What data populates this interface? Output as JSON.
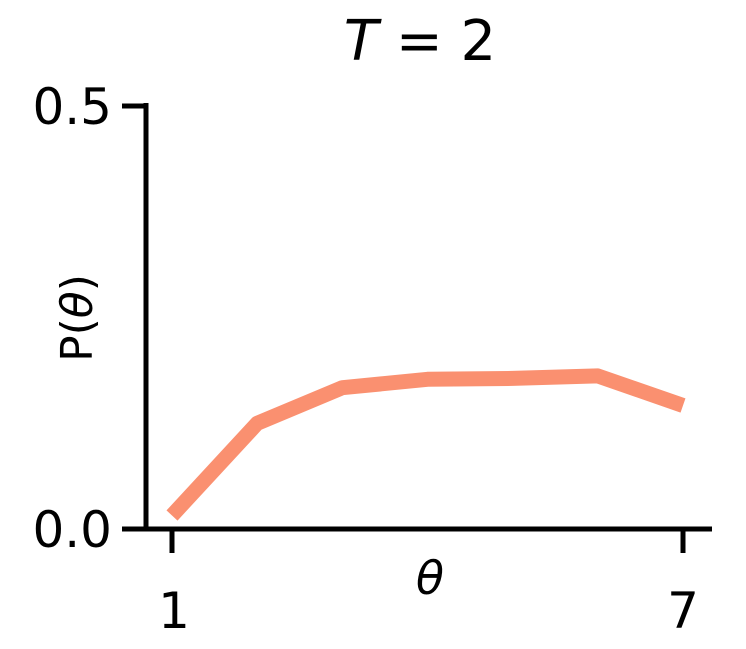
{
  "chart_data": {
    "type": "line",
    "title_var": "T",
    "title_rest": " = 2",
    "xlabel": "θ",
    "ylabel_prefix": "P(",
    "ylabel_var": "θ",
    "ylabel_suffix": ")",
    "xlim": [
      1,
      7
    ],
    "ylim": [
      0,
      0.5
    ],
    "xticks": [
      "1",
      "7"
    ],
    "yticks": [
      "0.0",
      "0.5"
    ],
    "grid": false,
    "series": [
      {
        "color": "#fa9070",
        "x": [
          1,
          2,
          3,
          4,
          5,
          6,
          7
        ],
        "y": [
          0.016,
          0.125,
          0.167,
          0.177,
          0.178,
          0.181,
          0.146
        ]
      }
    ]
  }
}
